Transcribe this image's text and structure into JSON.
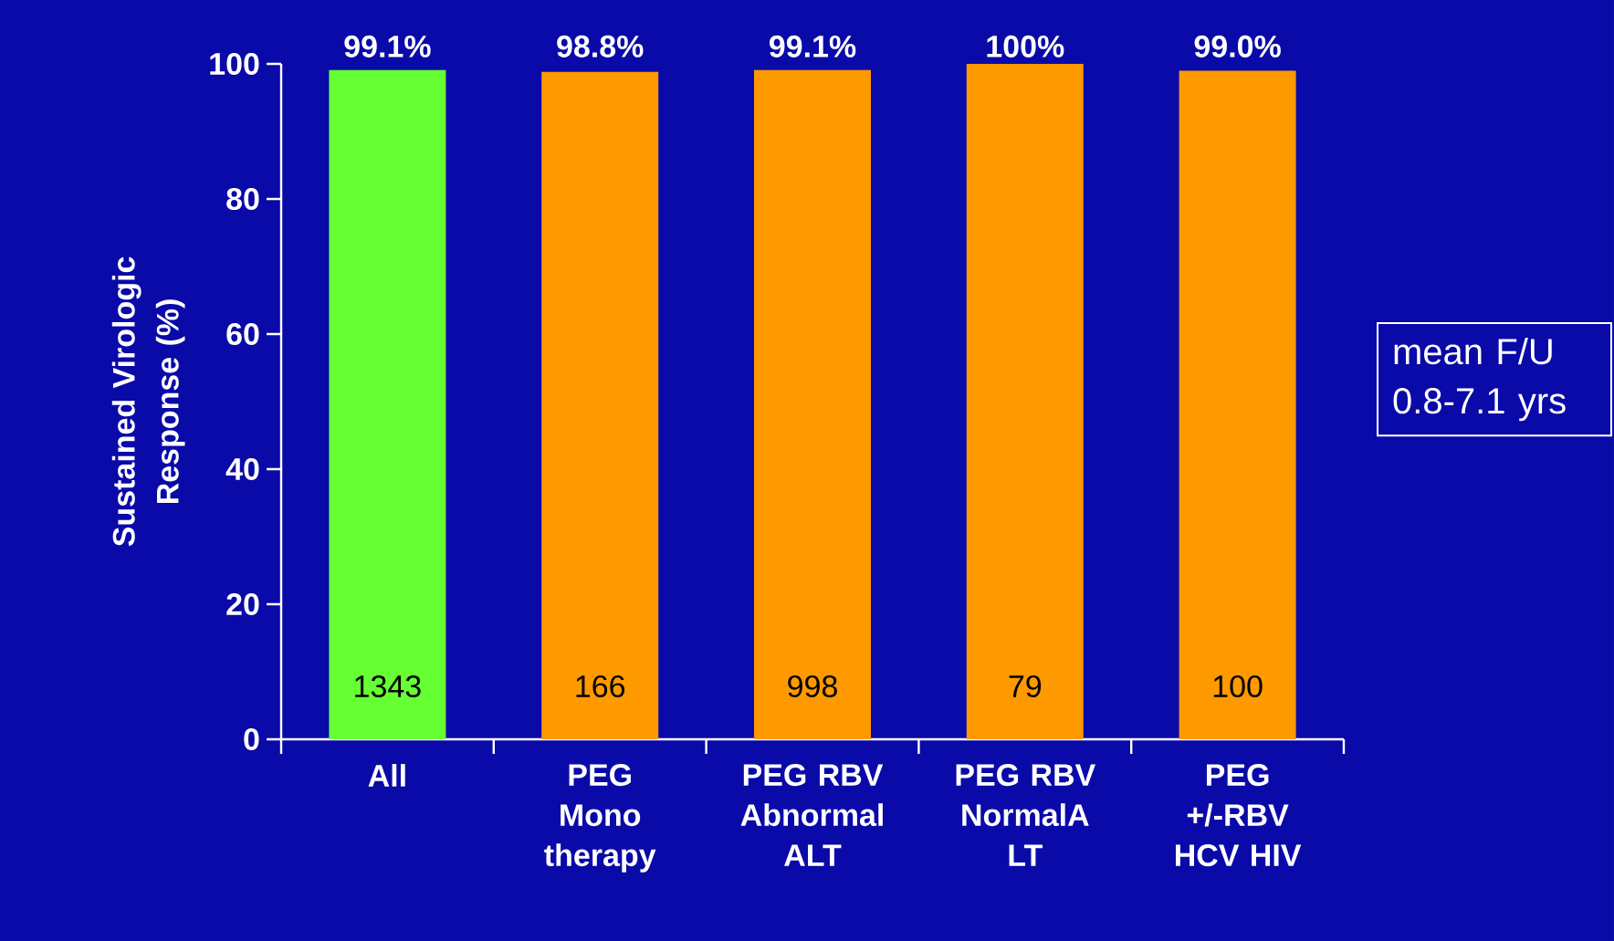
{
  "chart_data": {
    "type": "bar",
    "ylabel": "Sustained Virologic Response (%)",
    "categories": [
      "All",
      "PEG Mono therapy",
      "PEG RBV Abnormal ALT",
      "PEG RBV NormalA LT",
      "PEG +/-RBV HCV HIV"
    ],
    "values": [
      99.1,
      98.8,
      99.1,
      100,
      99.0
    ],
    "colors": [
      "#66ff33",
      "#ff9900",
      "#ff9900",
      "#ff9900",
      "#ff9900"
    ],
    "value_labels": [
      "99.1%",
      "98.8%",
      "99.1%",
      "100%",
      "99.0%"
    ],
    "ylim": [
      0,
      100
    ],
    "yticks": [
      0,
      20,
      40,
      60,
      80,
      100
    ],
    "annotations": [
      "1343",
      "166",
      "998",
      "79",
      "100",
      "mean F/U 0.8-7.1 yrs"
    ]
  }
}
